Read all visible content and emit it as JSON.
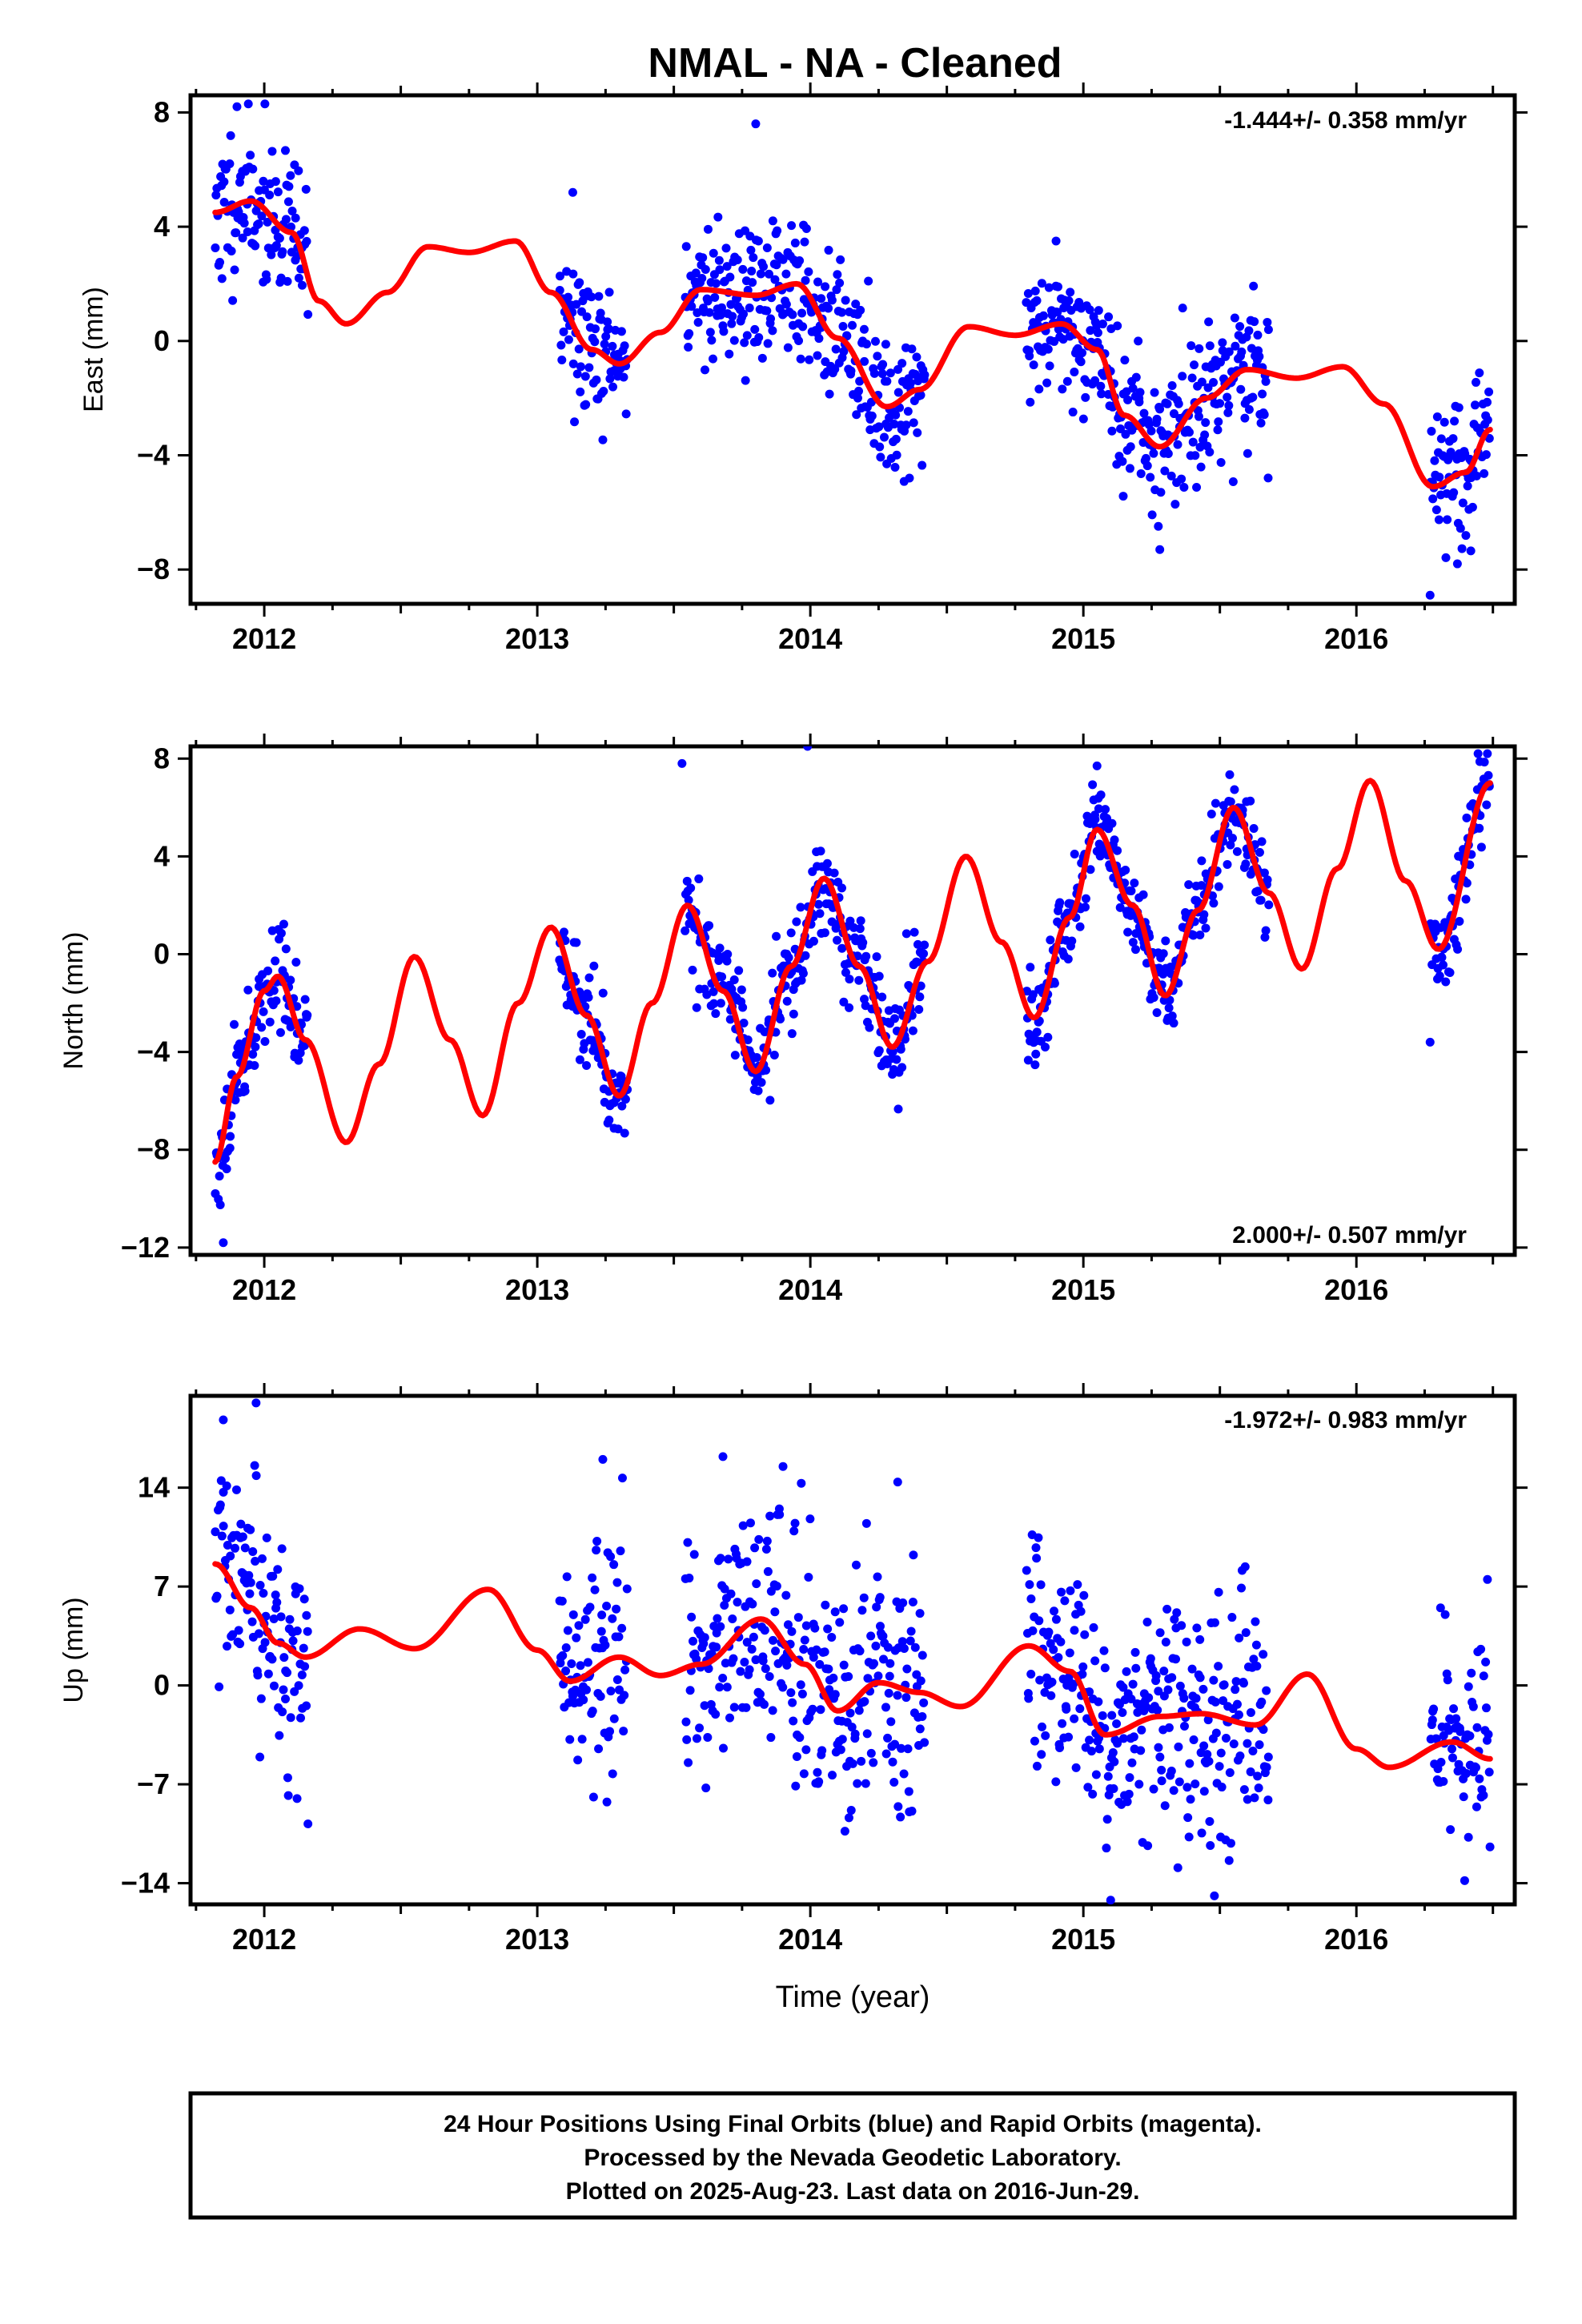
{
  "title": "NMAL  - NA - Cleaned",
  "xlabel": "Time (year)",
  "footer": {
    "line1": "24 Hour Positions Using Final Orbits (blue) and Rapid Orbits (magenta).",
    "line2": "Processed by the Nevada Geodetic Laboratory.",
    "line3": "Plotted on 2025-Aug-23. Last data on 2016-Jun-29."
  },
  "colors": {
    "points": "#0000ff",
    "fit": "#ff0000",
    "axes": "#000000"
  },
  "chart_data": [
    {
      "type": "scatter",
      "name": "east",
      "ylabel": "East (mm)",
      "rate_text": "-1.444+/- 0.358 mm/yr",
      "rate_position": "top-right",
      "xlim": [
        2011.73,
        2016.58
      ],
      "ylim": [
        -9.2,
        8.6
      ],
      "xticks": [
        2012,
        2013,
        2014,
        2015,
        2016
      ],
      "xtick_labels": [
        "2012",
        "2013",
        "2014",
        "2015",
        "2016"
      ],
      "yticks": [
        8,
        4,
        0,
        -4,
        -8
      ],
      "ytick_labels": [
        "8",
        "4",
        "0",
        "−4",
        "−8"
      ],
      "grid": false,
      "series": [
        {
          "kind": "points",
          "segments": [
            [
              2011.82,
              2012.16
            ],
            [
              2013.08,
              2013.33
            ],
            [
              2013.54,
              2014.42
            ],
            [
              2014.79,
              2015.68
            ],
            [
              2016.27,
              2016.49
            ]
          ],
          "amplitude": 1.3,
          "seed": 11,
          "x": [
            2011.9,
            2013.13,
            2013.8,
            2014.28,
            2014.9,
            2015.28,
            2016.37,
            2016.27,
            2016.42
          ],
          "y": [
            8.2,
            5.2,
            7.6,
            -4.3,
            3.5,
            -7.3,
            -7.8,
            -8.9,
            -4.2
          ]
        },
        {
          "kind": "fit",
          "x": [
            2011.82,
            2011.95,
            2012.1,
            2012.2,
            2012.3,
            2012.45,
            2012.6,
            2012.75,
            2012.92,
            2013.05,
            2013.2,
            2013.3,
            2013.45,
            2013.6,
            2013.8,
            2013.95,
            2014.1,
            2014.28,
            2014.4,
            2014.58,
            2014.75,
            2014.92,
            2015.05,
            2015.15,
            2015.28,
            2015.45,
            2015.6,
            2015.78,
            2015.95,
            2016.1,
            2016.28,
            2016.4,
            2016.49
          ],
          "y": [
            4.5,
            4.9,
            3.8,
            1.4,
            0.6,
            1.7,
            3.3,
            3.1,
            3.5,
            1.7,
            -0.3,
            -0.8,
            0.3,
            1.8,
            1.6,
            2.0,
            0.1,
            -2.3,
            -1.7,
            0.5,
            0.2,
            0.6,
            -0.3,
            -2.6,
            -3.7,
            -2.0,
            -1.0,
            -1.3,
            -0.9,
            -2.2,
            -5.1,
            -4.6,
            -3.1
          ]
        }
      ]
    },
    {
      "type": "scatter",
      "name": "north",
      "ylabel": "North (mm)",
      "rate_text": "2.000+/- 0.507 mm/yr",
      "rate_position": "bottom-right",
      "xlim": [
        2011.73,
        2016.58
      ],
      "ylim": [
        -12.3,
        8.5
      ],
      "xticks": [
        2012,
        2013,
        2014,
        2015,
        2016
      ],
      "xtick_labels": [
        "2012",
        "2013",
        "2014",
        "2015",
        "2016"
      ],
      "yticks": [
        8,
        4,
        0,
        -4,
        -8,
        -12
      ],
      "ytick_labels": [
        "8",
        "4",
        "0",
        "−4",
        "−8",
        "−12"
      ],
      "grid": false,
      "series": [
        {
          "kind": "points",
          "segments": [
            [
              2011.82,
              2012.16
            ],
            [
              2013.08,
              2013.33
            ],
            [
              2013.54,
              2014.42
            ],
            [
              2014.79,
              2015.68
            ],
            [
              2016.27,
              2016.49
            ]
          ],
          "amplitude": 1.0,
          "seed": 23,
          "x": [
            2011.85,
            2013.53,
            2013.99,
            2014.87,
            2016.27,
            2015.05
          ],
          "y": [
            -11.8,
            7.8,
            8.5,
            -3.4,
            -3.6,
            7.7
          ]
        },
        {
          "kind": "fit",
          "x": [
            2011.82,
            2011.9,
            2012.0,
            2012.05,
            2012.15,
            2012.3,
            2012.42,
            2012.55,
            2012.68,
            2012.8,
            2012.93,
            2013.05,
            2013.18,
            2013.3,
            2013.42,
            2013.55,
            2013.68,
            2013.8,
            2013.93,
            2014.05,
            2014.18,
            2014.3,
            2014.43,
            2014.57,
            2014.7,
            2014.82,
            2014.95,
            2015.05,
            2015.18,
            2015.3,
            2015.42,
            2015.55,
            2015.68,
            2015.8,
            2015.93,
            2016.05,
            2016.18,
            2016.3,
            2016.49
          ],
          "y": [
            -8.5,
            -5.0,
            -1.5,
            -0.9,
            -3.5,
            -7.7,
            -4.5,
            -0.1,
            -3.5,
            -6.6,
            -2.0,
            1.1,
            -2.5,
            -5.8,
            -2.0,
            2.0,
            -1.5,
            -4.8,
            -0.5,
            3.1,
            -0.5,
            -3.8,
            -0.3,
            4.0,
            0.5,
            -2.6,
            1.5,
            5.1,
            2.0,
            -1.7,
            1.8,
            6.0,
            2.5,
            -0.6,
            3.5,
            7.1,
            3.0,
            0.2,
            7.0
          ]
        }
      ]
    },
    {
      "type": "scatter",
      "name": "up",
      "ylabel": "Up (mm)",
      "rate_text": "-1.972+/- 0.983 mm/yr",
      "rate_position": "top-right",
      "xlim": [
        2011.73,
        2016.58
      ],
      "ylim": [
        -15.5,
        20.5
      ],
      "xticks": [
        2012,
        2013,
        2014,
        2015,
        2016
      ],
      "xtick_labels": [
        "2012",
        "2013",
        "2014",
        "2015",
        "2016"
      ],
      "yticks": [
        14,
        7,
        0,
        -7,
        -14
      ],
      "ytick_labels": [
        "14",
        "7",
        "0",
        "−7",
        "−14"
      ],
      "grid": false,
      "series": [
        {
          "kind": "points",
          "segments": [
            [
              2011.82,
              2012.16
            ],
            [
              2013.08,
              2013.33
            ],
            [
              2013.54,
              2014.42
            ],
            [
              2014.79,
              2015.68
            ],
            [
              2016.27,
              2016.49
            ]
          ],
          "amplitude": 4.2,
          "seed": 37,
          "x": [
            2011.97,
            2011.85,
            2012.16,
            2013.24,
            2013.68,
            2013.9,
            2014.32,
            2015.1,
            2015.48,
            2016.48
          ],
          "y": [
            20.0,
            18.8,
            -9.8,
            16.0,
            16.2,
            15.5,
            14.4,
            -15.2,
            -14.9,
            7.5
          ]
        },
        {
          "kind": "fit",
          "x": [
            2011.82,
            2011.95,
            2012.05,
            2012.15,
            2012.35,
            2012.55,
            2012.82,
            2013.0,
            2013.12,
            2013.3,
            2013.45,
            2013.6,
            2013.82,
            2013.98,
            2014.1,
            2014.25,
            2014.4,
            2014.55,
            2014.8,
            2014.95,
            2015.08,
            2015.28,
            2015.43,
            2015.63,
            2015.82,
            2016.0,
            2016.12,
            2016.35,
            2016.49
          ],
          "y": [
            8.6,
            5.5,
            3.0,
            2.0,
            4.0,
            2.6,
            6.8,
            2.5,
            0.3,
            2.0,
            0.7,
            1.5,
            4.7,
            1.5,
            -1.8,
            0.2,
            -0.5,
            -1.5,
            2.8,
            1.0,
            -3.5,
            -2.2,
            -2.0,
            -2.8,
            0.8,
            -4.5,
            -5.8,
            -4.0,
            -5.2
          ]
        }
      ]
    }
  ]
}
